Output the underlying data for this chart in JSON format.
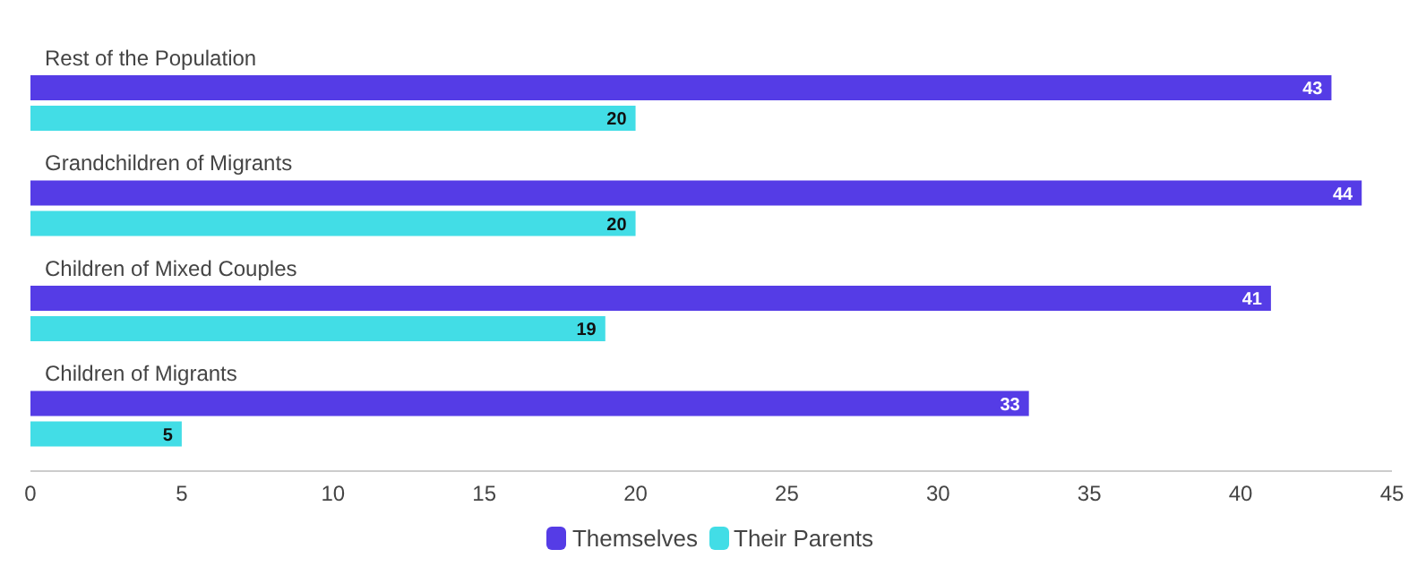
{
  "chart_data": {
    "type": "bar",
    "orientation": "horizontal",
    "categories": [
      "Rest of the Population",
      "Grandchildren of Migrants",
      "Children of Mixed Couples",
      "Children of Migrants"
    ],
    "series": [
      {
        "name": "Themselves",
        "color": "#553ce6",
        "values": [
          43,
          44,
          41,
          33
        ]
      },
      {
        "name": "Their Parents",
        "color": "#42dde6",
        "values": [
          20,
          20,
          19,
          5
        ]
      }
    ],
    "xlim": [
      0,
      45
    ],
    "xticks": [
      0,
      5,
      10,
      15,
      20,
      25,
      30,
      35,
      40,
      45
    ],
    "data_labels": true,
    "grid": false,
    "legend": "bottom"
  }
}
